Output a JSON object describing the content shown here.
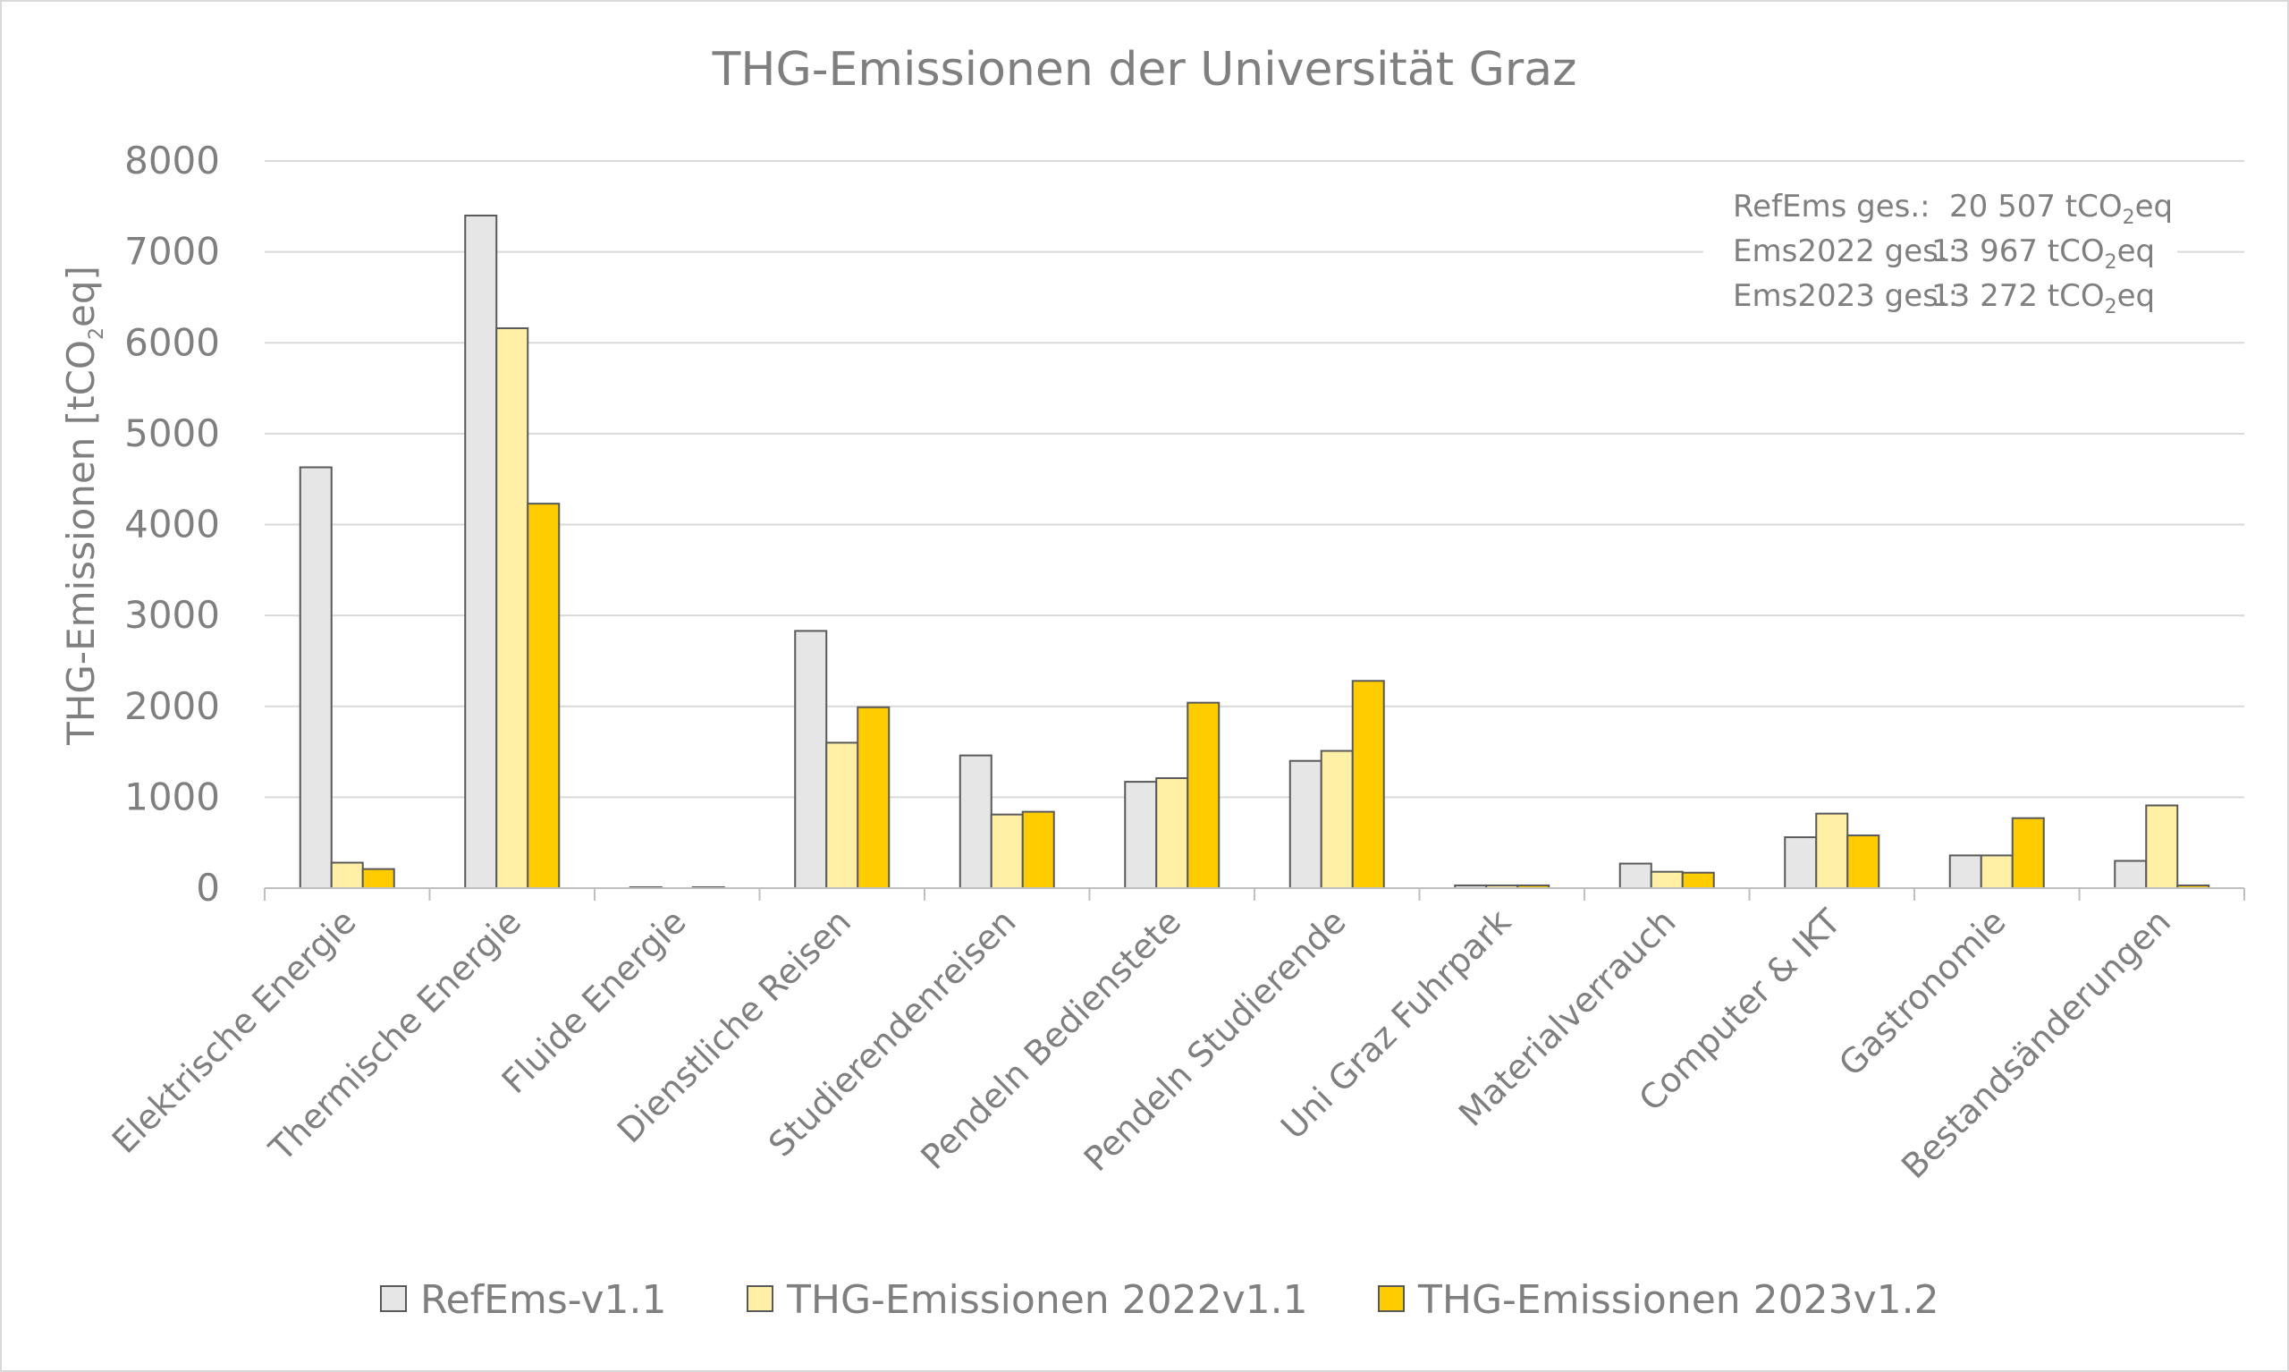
{
  "chart_data": {
    "type": "bar",
    "title": "THG-Emissionen der Universität Graz",
    "ylabel_main": "THG-Emissionen [tCO",
    "ylabel_sub": "2",
    "ylabel_end": "eq]",
    "ylim": [
      0,
      8000
    ],
    "yticks": [
      "0",
      "1000",
      "2000",
      "3000",
      "4000",
      "5000",
      "6000",
      "7000",
      "8000"
    ],
    "grid": true,
    "legend_position": "bottom",
    "categories": [
      "Elektrische Energie",
      "Thermische Energie",
      "Fluide Energie",
      "Dienstliche Reisen",
      "Studierendenreisen",
      "Pendeln Bedienstete",
      "Pendeln Studierende",
      "Uni Graz Fuhrpark",
      "Materialverrauch",
      "Computer & IKT",
      "Gastronomie",
      "Bestandsänderungen"
    ],
    "series": [
      {
        "name": "RefEms-v1.1",
        "color": "#e6e6e6",
        "values": [
          4630,
          7400,
          10,
          2830,
          1460,
          1170,
          1400,
          30,
          270,
          560,
          360,
          300
        ]
      },
      {
        "name": "THG-Emissionen 2022v1.1",
        "color": "#fff0a6",
        "values": [
          280,
          6160,
          0,
          1600,
          810,
          1210,
          1510,
          30,
          180,
          820,
          360,
          910
        ]
      },
      {
        "name": "THG-Emissionen 2023v1.2",
        "color": "#ffcc00",
        "values": [
          210,
          4230,
          10,
          1990,
          840,
          2040,
          2280,
          30,
          170,
          580,
          770,
          30
        ]
      }
    ],
    "annotations": [
      {
        "label": "RefEms ges.:",
        "value": "20 507 tCO",
        "sub": "2",
        "unit": "eq"
      },
      {
        "label": "Ems2022 ges.:",
        "value": "13 967 tCO",
        "sub": "2",
        "unit": "eq"
      },
      {
        "label": "Ems2023 ges.:",
        "value": "13 272 tCO",
        "sub": "2",
        "unit": "eq"
      }
    ]
  }
}
